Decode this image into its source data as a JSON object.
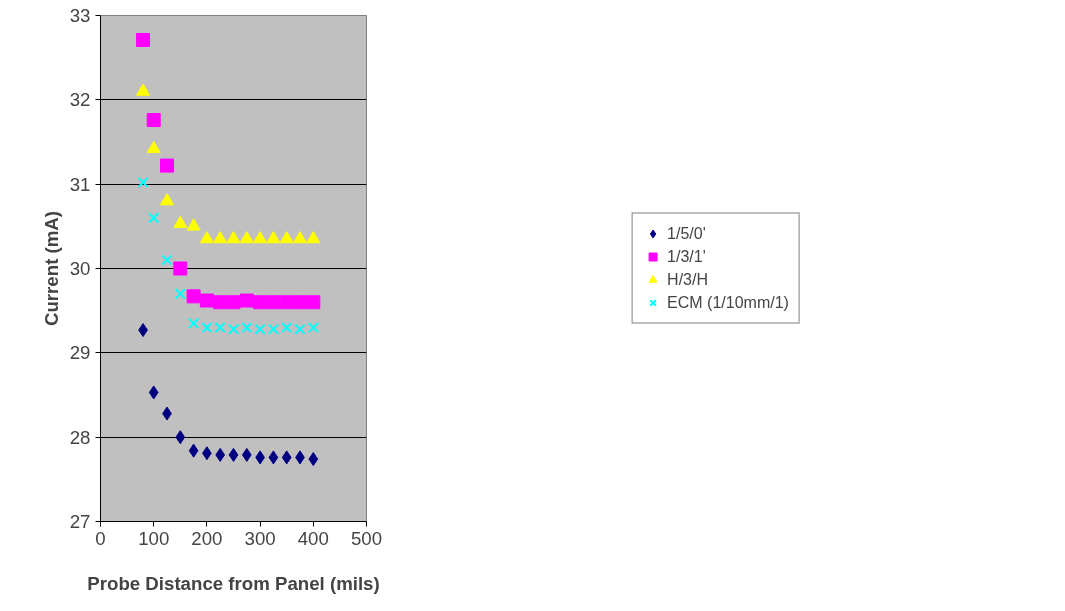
{
  "chart_data": {
    "type": "scatter",
    "xlabel": "Probe Distance from Panel (mils)",
    "ylabel": "Current (mA)",
    "x": [
      80,
      100,
      125,
      150,
      175,
      200,
      225,
      250,
      275,
      300,
      325,
      350,
      375,
      400
    ],
    "xlim": [
      0,
      500
    ],
    "xticks": [
      0,
      100,
      200,
      300,
      400,
      500
    ],
    "ylim": [
      27,
      33
    ],
    "yticks": [
      27,
      28,
      29,
      30,
      31,
      32,
      33
    ],
    "grid": "y",
    "legend": "right",
    "series": [
      {
        "name": "1/5/0'",
        "color": "#000080",
        "marker": "diamond",
        "values": [
          29.27,
          28.53,
          28.28,
          28.0,
          27.84,
          27.81,
          27.79,
          27.79,
          27.79,
          27.76,
          27.76,
          27.76,
          27.76,
          27.74
        ]
      },
      {
        "name": "1/3/1'",
        "color": "#ff00ff",
        "marker": "square",
        "values": [
          32.71,
          31.76,
          31.22,
          30.0,
          29.67,
          29.62,
          29.6,
          29.6,
          29.62,
          29.6,
          29.6,
          29.6,
          29.6,
          29.6
        ]
      },
      {
        "name": "H/3/H",
        "color": "#ffff00",
        "marker": "triangle",
        "values": [
          32.1,
          31.42,
          30.8,
          30.53,
          30.5,
          30.35,
          30.35,
          30.35,
          30.35,
          30.35,
          30.35,
          30.35,
          30.35,
          30.35
        ]
      },
      {
        "name": "ECM (1/10mm/1)",
        "color": "#00ffff",
        "marker": "cross",
        "values": [
          31.02,
          30.6,
          30.1,
          29.7,
          29.35,
          29.3,
          29.3,
          29.28,
          29.3,
          29.28,
          29.28,
          29.3,
          29.28,
          29.3
        ]
      }
    ]
  }
}
